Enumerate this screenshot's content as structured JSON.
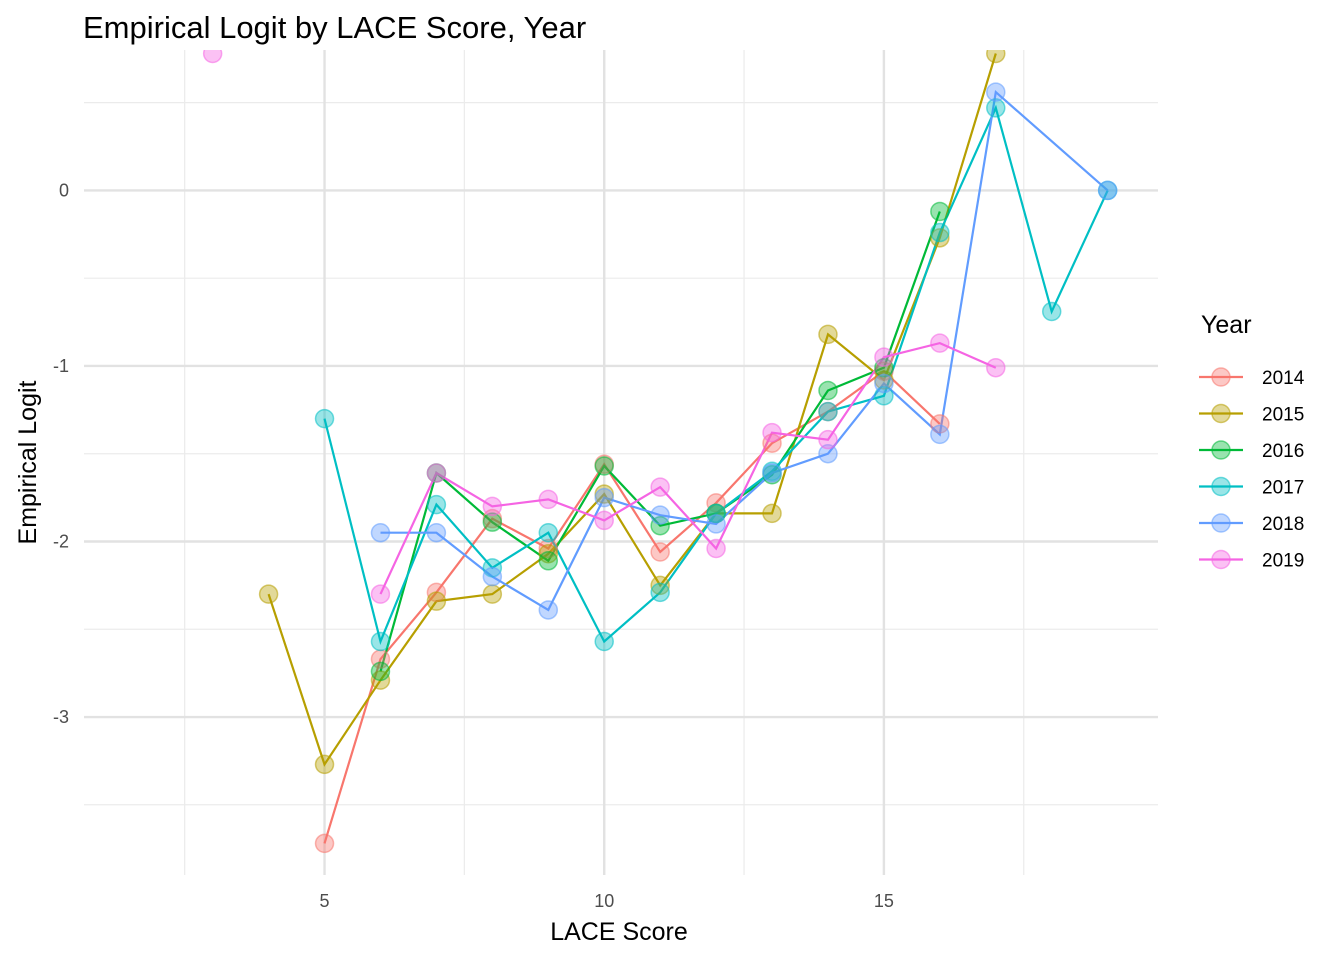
{
  "chart_data": {
    "type": "line",
    "title": "Empirical Logit by LACE Score, Year",
    "xlabel": "LACE Score",
    "ylabel": "Empirical Logit",
    "xlim": [
      0.7,
      19.9
    ],
    "ylim": [
      -3.9,
      0.8
    ],
    "x_ticks": [
      5,
      10,
      15
    ],
    "y_ticks": [
      0,
      -1,
      -2,
      -3
    ],
    "grid": true,
    "legend": {
      "title": "Year",
      "position": "right"
    },
    "series": [
      {
        "name": "2014",
        "color": "#F8766D",
        "points": [
          [
            5,
            -3.72
          ],
          [
            6,
            -2.67
          ],
          [
            7,
            -2.29
          ],
          [
            8,
            -1.87
          ],
          [
            9,
            -2.04
          ],
          [
            10,
            -1.56
          ],
          [
            11,
            -2.06
          ],
          [
            12,
            -1.78
          ],
          [
            13,
            -1.44
          ],
          [
            14,
            -1.26
          ],
          [
            15,
            -1.03
          ],
          [
            16,
            -1.33
          ]
        ]
      },
      {
        "name": "2015",
        "color": "#B79F00",
        "points": [
          [
            4,
            -2.3
          ],
          [
            5,
            -3.27
          ],
          [
            6,
            -2.79
          ],
          [
            7,
            -2.34
          ],
          [
            8,
            -2.3
          ],
          [
            9,
            -2.07
          ],
          [
            10,
            -1.73
          ],
          [
            11,
            -2.25
          ],
          [
            12,
            -1.84
          ],
          [
            13,
            -1.84
          ],
          [
            14,
            -0.82
          ],
          [
            15,
            -1.08
          ],
          [
            16,
            -0.27
          ],
          [
            17,
            0.78
          ]
        ]
      },
      {
        "name": "2016",
        "color": "#00BA38",
        "points": [
          [
            6,
            -2.74
          ],
          [
            7,
            -1.61
          ],
          [
            8,
            -1.89
          ],
          [
            9,
            -2.11
          ],
          [
            10,
            -1.57
          ],
          [
            11,
            -1.91
          ],
          [
            12,
            -1.84
          ],
          [
            13,
            -1.62
          ],
          [
            14,
            -1.14
          ],
          [
            15,
            -1.01
          ],
          [
            16,
            -0.12
          ]
        ]
      },
      {
        "name": "2017",
        "color": "#00BFC4",
        "points": [
          [
            5,
            -1.3
          ],
          [
            6,
            -2.57
          ],
          [
            7,
            -1.79
          ],
          [
            8,
            -2.15
          ],
          [
            9,
            -1.95
          ],
          [
            10,
            -2.57
          ],
          [
            11,
            -2.29
          ],
          [
            12,
            -1.84
          ],
          [
            13,
            -1.6
          ],
          [
            14,
            -1.26
          ],
          [
            15,
            -1.17
          ],
          [
            16,
            -0.24
          ],
          [
            17,
            0.47
          ],
          [
            18,
            -0.69
          ],
          [
            19,
            0.0
          ]
        ]
      },
      {
        "name": "2018",
        "color": "#619CFF",
        "points": [
          [
            6,
            -1.95
          ],
          [
            7,
            -1.95
          ],
          [
            8,
            -2.2
          ],
          [
            9,
            -2.39
          ],
          [
            10,
            -1.75
          ],
          [
            11,
            -1.85
          ],
          [
            12,
            -1.9
          ],
          [
            13,
            -1.61
          ],
          [
            14,
            -1.5
          ],
          [
            15,
            -1.1
          ],
          [
            16,
            -1.39
          ],
          [
            17,
            0.56
          ],
          [
            19,
            0.0
          ]
        ]
      },
      {
        "name": "2019",
        "color": "#F564E3",
        "points": [
          [
            6,
            -2.3
          ],
          [
            7,
            -1.61
          ],
          [
            8,
            -1.8
          ],
          [
            9,
            -1.76
          ],
          [
            10,
            -1.88
          ],
          [
            11,
            -1.69
          ],
          [
            12,
            -2.04
          ],
          [
            13,
            -1.38
          ],
          [
            14,
            -1.42
          ],
          [
            15,
            -0.95
          ],
          [
            16,
            -0.87
          ],
          [
            17,
            -1.01
          ]
        ]
      }
    ],
    "extra_points": [
      {
        "series": "2019",
        "x": 3,
        "y": 0.78
      }
    ]
  }
}
